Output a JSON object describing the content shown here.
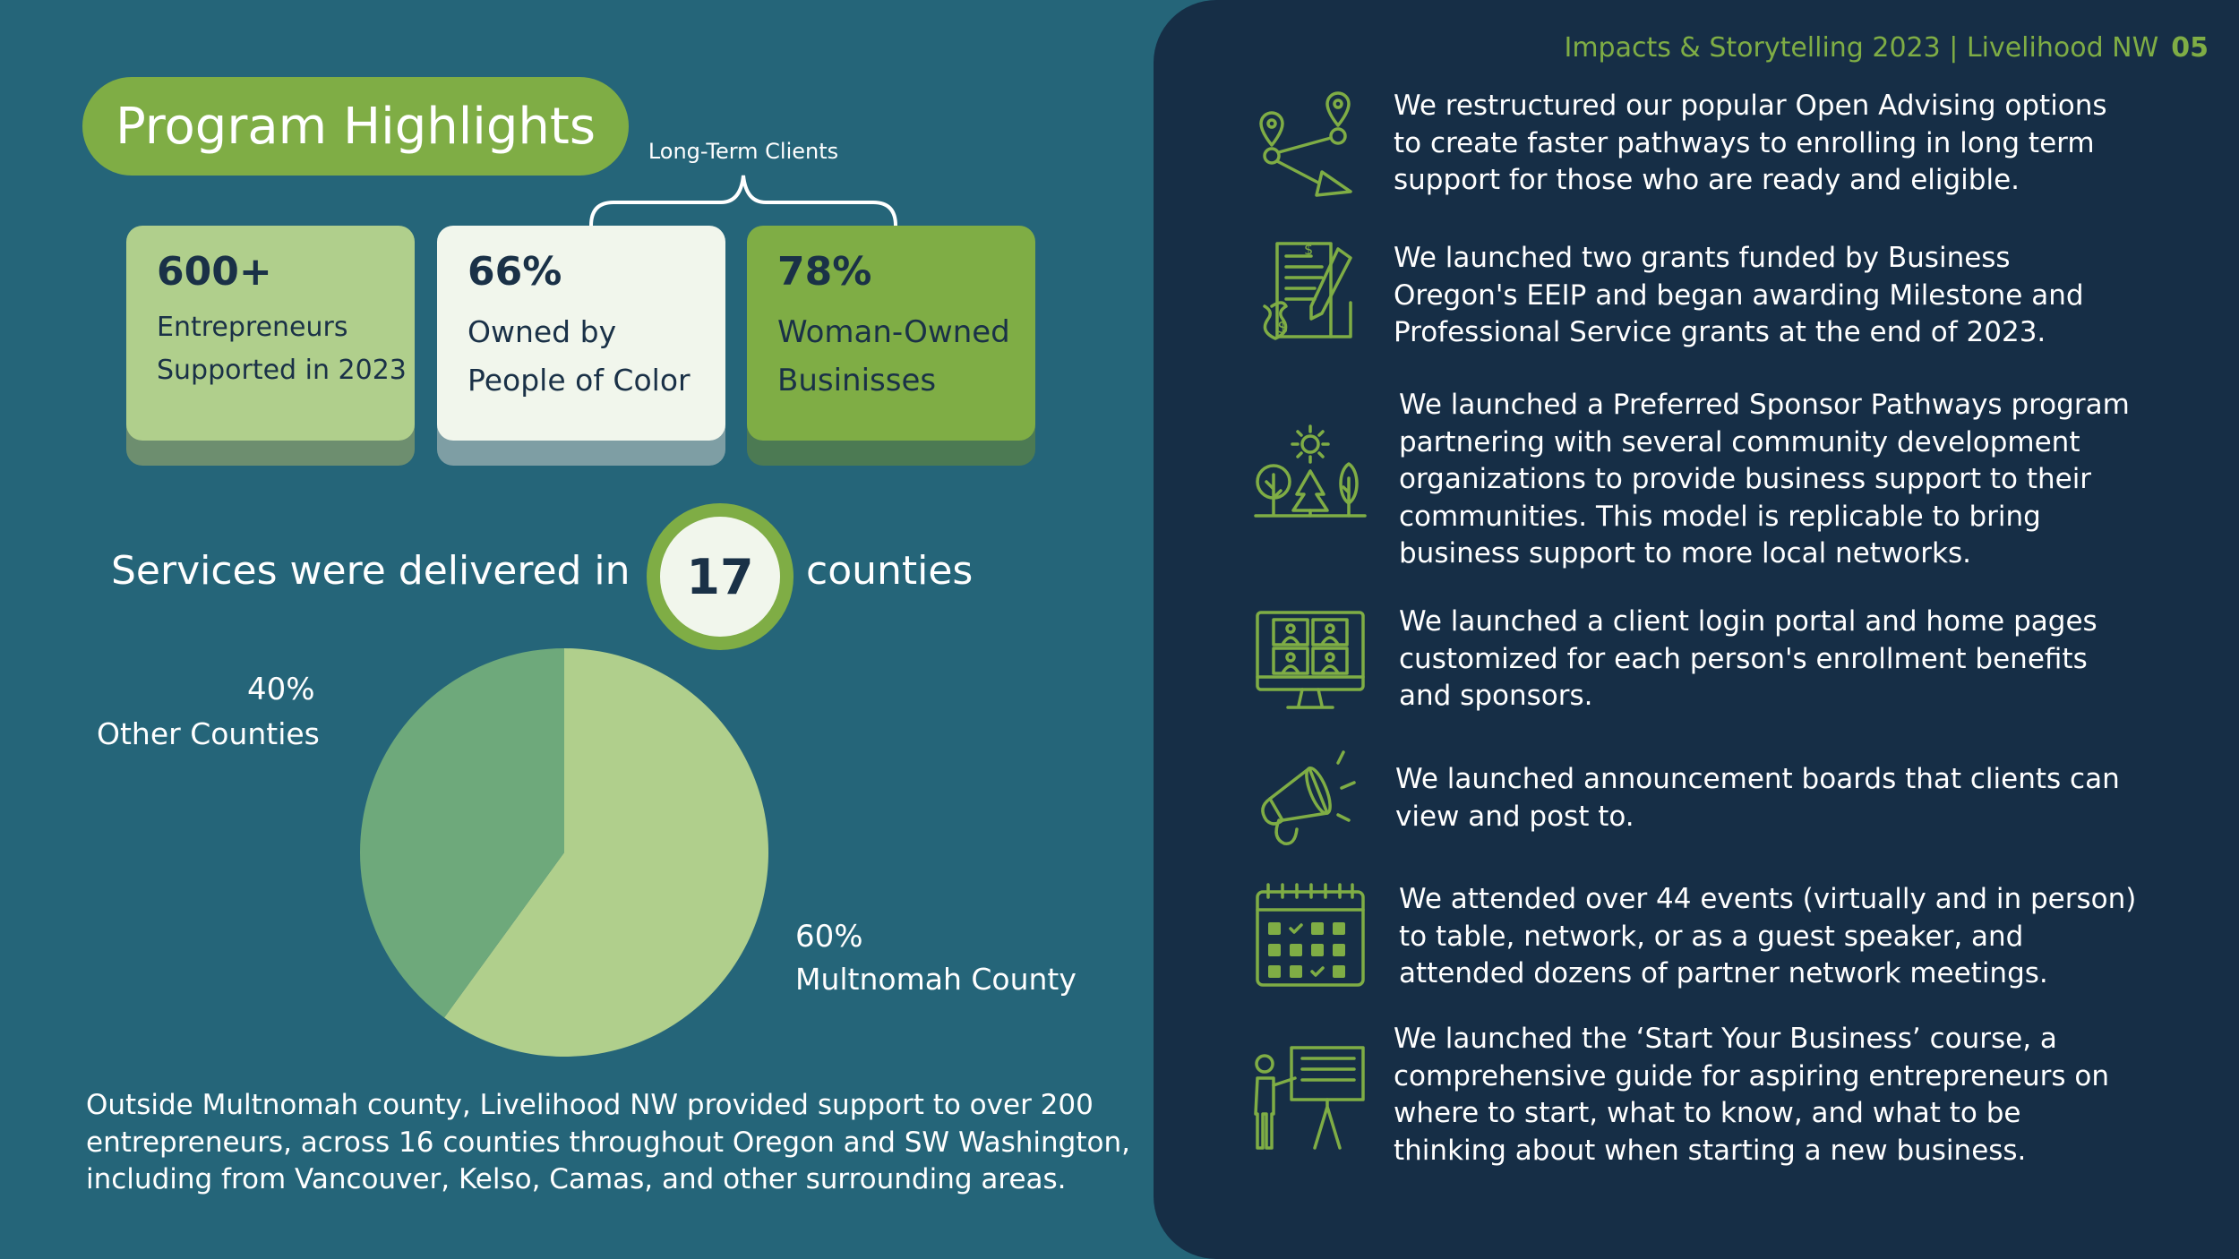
{
  "header": {
    "title": "Impacts & Storytelling 2023 | Livelihood NW",
    "page_number": "05"
  },
  "highlights": {
    "title": "Program Highlights",
    "brace_label": "Long-Term Clients",
    "cards": [
      {
        "value": "600+",
        "line1": "Entrepreneurs",
        "line2": "Supported in 2023"
      },
      {
        "value": "66%",
        "line1": "Owned by",
        "line2": "People of Color"
      },
      {
        "value": "78%",
        "line1": "Woman-Owned",
        "line2": "Businisses"
      }
    ]
  },
  "services": {
    "prefix": "Services were delivered in",
    "count": "17",
    "suffix": "counties"
  },
  "chart_data": {
    "type": "pie",
    "slices": [
      {
        "label": "Multnomah County",
        "value": 60,
        "display": "60%",
        "color": "#b0cf8c"
      },
      {
        "label": "Other Counties",
        "value": 40,
        "display": "40%",
        "color": "#6ea97b"
      }
    ]
  },
  "footnote": "Outside Multnomah county, Livelihood NW provided support to over 200 entrepreneurs, across 16 counties throughout Oregon and SW Washington, including from Vancouver, Kelso, Camas, and other surrounding areas.",
  "accomplishments": [
    {
      "icon": "location-route-icon",
      "text": "We restructured our popular Open Advising options to create faster pathways to enrolling in long term support for those who are ready and eligible."
    },
    {
      "icon": "grant-document-icon",
      "text": "We launched two grants funded by Business Oregon's EEIP and began awarding Milestone and Professional Service grants at the end of 2023."
    },
    {
      "icon": "trees-sun-icon",
      "text": "We launched a Preferred Sponsor Pathways program partnering with several community development organizations to provide business support to their communities. This model is replicable to bring business support to more local networks."
    },
    {
      "icon": "monitor-portal-icon",
      "text": "We launched a client login portal and home pages customized for each person's enrollment benefits and sponsors."
    },
    {
      "icon": "megaphone-icon",
      "text": "We launched announcement boards that clients can view and post to."
    },
    {
      "icon": "calendar-icon",
      "text": "We attended over 44 events (virtually and in person) to table, network, or as a guest speaker, and attended dozens of partner network meetings."
    },
    {
      "icon": "presentation-icon",
      "text": "We launched the ‘Start Your Business’ course, a comprehensive guide for aspiring entrepreneurs on where to start, what to know, and what to be thinking about when starting a new business."
    }
  ],
  "colors": {
    "background": "#256579",
    "panel": "#162e46",
    "accent_green": "#7fad45",
    "light_green": "#b0cf8c",
    "cream": "#f1f6ec",
    "navy_text": "#1a3147"
  }
}
